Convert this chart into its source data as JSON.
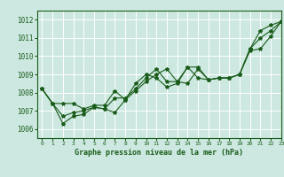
{
  "title": "Graphe pression niveau de la mer (hPa)",
  "bg_color": "#cce8e0",
  "grid_color": "#ffffff",
  "line_color": "#1a5c1a",
  "xlim": [
    -0.5,
    23
  ],
  "ylim": [
    1005.5,
    1012.5
  ],
  "yticks": [
    1006,
    1007,
    1008,
    1009,
    1010,
    1011,
    1012
  ],
  "xticks": [
    0,
    1,
    2,
    3,
    4,
    5,
    6,
    7,
    8,
    9,
    10,
    11,
    12,
    13,
    14,
    15,
    16,
    17,
    18,
    19,
    20,
    21,
    22,
    23
  ],
  "series": [
    [
      1008.2,
      1007.4,
      1007.4,
      1007.4,
      1007.1,
      1007.3,
      1007.3,
      1008.1,
      1007.6,
      1008.5,
      1009.0,
      1008.8,
      1008.3,
      1008.5,
      1009.4,
      1009.4,
      1008.7,
      1008.8,
      1008.8,
      1009.0,
      1010.4,
      1011.4,
      1011.7,
      1011.9
    ],
    [
      1008.2,
      1007.4,
      1006.3,
      1006.7,
      1006.8,
      1007.2,
      1007.1,
      1006.9,
      1007.6,
      1008.1,
      1008.6,
      1009.0,
      1009.3,
      1008.6,
      1008.5,
      1009.3,
      1008.7,
      1008.8,
      1008.8,
      1009.0,
      1010.3,
      1010.4,
      1011.1,
      1011.9
    ],
    [
      1008.2,
      1007.4,
      1006.7,
      1006.9,
      1007.0,
      1007.2,
      1007.1,
      1007.7,
      1007.7,
      1008.2,
      1008.8,
      1009.3,
      1008.6,
      1008.6,
      1009.4,
      1008.8,
      1008.7,
      1008.8,
      1008.8,
      1009.0,
      1010.4,
      1011.0,
      1011.4,
      1011.9
    ]
  ],
  "xlabel_fontsize": 6.0,
  "ytick_fontsize": 5.5,
  "xtick_fontsize": 4.5
}
